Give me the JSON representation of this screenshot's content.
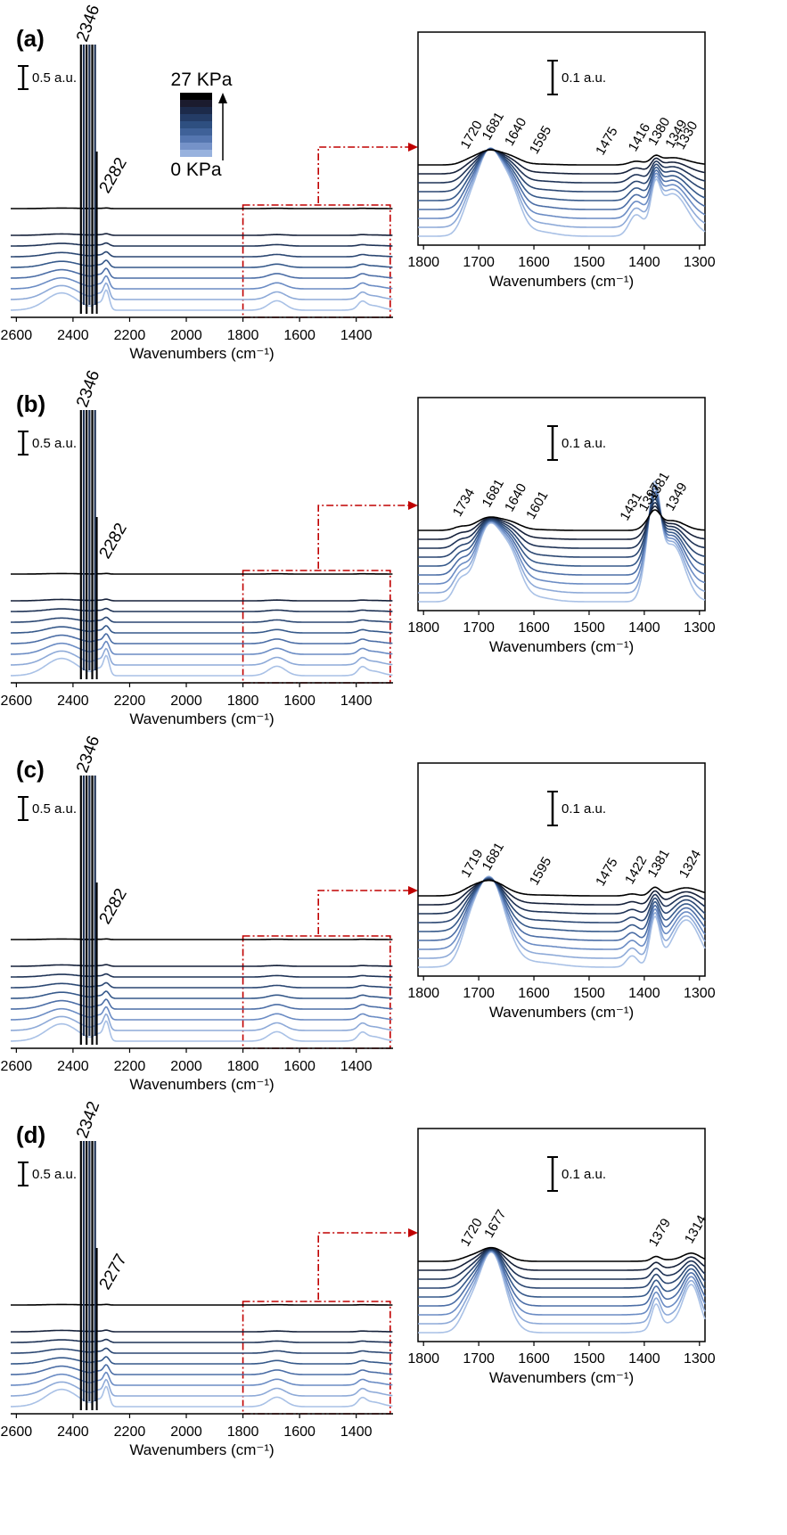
{
  "figure": {
    "legend": {
      "top_label": "27 KPa",
      "bottom_label": "0 KPa",
      "colors": [
        "#000000",
        "#1b1b2e",
        "#1c2a4a",
        "#243c66",
        "#2e4f80",
        "#3f6198",
        "#5576b0",
        "#7592c8",
        "#98b2de"
      ]
    },
    "series_colors": [
      "#000000",
      "#16213a",
      "#1f3356",
      "#2b4772",
      "#36598a",
      "#4c6ea6",
      "#6b8cc4",
      "#8eaad8",
      "#a9c1e6"
    ],
    "inset_frame_color": "#c00000"
  },
  "chart_data": [
    {
      "panel": "(a)",
      "type": "line",
      "xlabel": "Wavenumbers (cm⁻¹)",
      "xlim": [
        2620,
        1270
      ],
      "xticks": [
        "2600",
        "2400",
        "2200",
        "2000",
        "1800",
        "1600",
        "1400"
      ],
      "scale_bar": "0.5 a.u.",
      "peak_labels": [
        "2346",
        "2282"
      ],
      "series_count": 9,
      "inset": {
        "xlabel": "Wavenumbers (cm⁻¹)",
        "xlim": [
          1810,
          1290
        ],
        "xticks": [
          "1800",
          "1700",
          "1600",
          "1500",
          "1400",
          "1300"
        ],
        "scale_bar": "0.1 a.u.",
        "peak_labels": [
          "1720",
          "1681",
          "1640",
          "1595",
          "1475",
          "1416",
          "1380",
          "1349",
          "1330"
        ]
      }
    },
    {
      "panel": "(b)",
      "type": "line",
      "xlabel": "Wavenumbers (cm⁻¹)",
      "xlim": [
        2620,
        1270
      ],
      "xticks": [
        "2600",
        "2400",
        "2200",
        "2000",
        "1800",
        "1600",
        "1400"
      ],
      "scale_bar": "0.5 a.u.",
      "peak_labels": [
        "2346",
        "2282"
      ],
      "series_count": 9,
      "inset": {
        "xlabel": "Wavenumbers (cm⁻¹)",
        "xlim": [
          1810,
          1290
        ],
        "xticks": [
          "1800",
          "1700",
          "1600",
          "1500",
          "1400",
          "1300"
        ],
        "scale_bar": "0.1 a.u.",
        "peak_labels": [
          "1734",
          "1681",
          "1640",
          "1601",
          "1431",
          "1397",
          "1381",
          "1349"
        ]
      }
    },
    {
      "panel": "(c)",
      "type": "line",
      "xlabel": "Wavenumbers (cm⁻¹)",
      "xlim": [
        2620,
        1270
      ],
      "xticks": [
        "2600",
        "2400",
        "2200",
        "2000",
        "1800",
        "1600",
        "1400"
      ],
      "scale_bar": "0.5 a.u.",
      "peak_labels": [
        "2346",
        "2282"
      ],
      "series_count": 9,
      "inset": {
        "xlabel": "Wavenumbers (cm⁻¹)",
        "xlim": [
          1810,
          1290
        ],
        "xticks": [
          "1800",
          "1700",
          "1600",
          "1500",
          "1400",
          "1300"
        ],
        "scale_bar": "0.1 a.u.",
        "peak_labels": [
          "1719",
          "1681",
          "1595",
          "1475",
          "1422",
          "1381",
          "1324"
        ]
      }
    },
    {
      "panel": "(d)",
      "type": "line",
      "xlabel": "Wavenumbers (cm⁻¹)",
      "xlim": [
        2620,
        1270
      ],
      "xticks": [
        "2600",
        "2400",
        "2200",
        "2000",
        "1800",
        "1600",
        "1400"
      ],
      "scale_bar": "0.5 a.u.",
      "peak_labels": [
        "2342",
        "2277"
      ],
      "series_count": 9,
      "inset": {
        "xlabel": "Wavenumbers (cm⁻¹)",
        "xlim": [
          1810,
          1290
        ],
        "xticks": [
          "1800",
          "1700",
          "1600",
          "1500",
          "1400",
          "1300"
        ],
        "scale_bar": "0.1 a.u.",
        "peak_labels": [
          "1720",
          "1677",
          "1379",
          "1314"
        ]
      }
    }
  ]
}
